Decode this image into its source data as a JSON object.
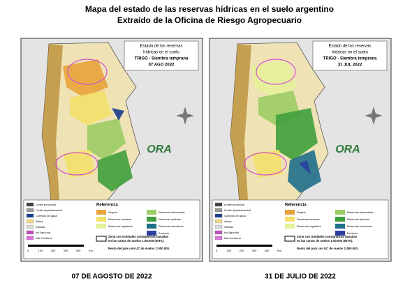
{
  "title": {
    "line1": "Mapa del estado de las reservas hídricas en el suelo argentino",
    "line2": "Extraído de la Oficina de Riesgo Agropecuario"
  },
  "maps": [
    {
      "caption": "07 DE AGOSTO DE 2022",
      "box": {
        "line1": "Estado de las reservas",
        "line2": "hídricas en el suelo",
        "line3": "TRIGO - Siembra temprana",
        "date": "07 AGO 2022"
      }
    },
    {
      "caption": "31 DE JULIO DE 2022",
      "box": {
        "line1": "Estado de las reservas",
        "line2": "hídricas en el suelo",
        "line3": "TRIGO - Siembra temprana",
        "date": "31 JUL 2022"
      }
    }
  ],
  "logo": "ORA",
  "legend": {
    "heading": "Referencia",
    "left": [
      "Límite provincial",
      "Límite departamental",
      "Cuerpos de agua",
      "Áreas",
      "Salinas",
      "Iso Agrícola",
      "Isla Contorno"
    ],
    "right": [
      "Sequía",
      "Reservas escasas",
      "Reservas regulares",
      "Reservas adecuadas",
      "Reservas óptimas",
      "Reservas excesivas",
      "Excesos"
    ],
    "note1": "Zona con Unidades cartográficas basadas",
    "note2": "en las cartas de suelos 1:50.000 (INTA).",
    "note3": "Resto del país con UC de suelos 1:500.000.",
    "scale": [
      "0",
      "100",
      "200",
      "300",
      "400",
      "Km"
    ]
  }
}
